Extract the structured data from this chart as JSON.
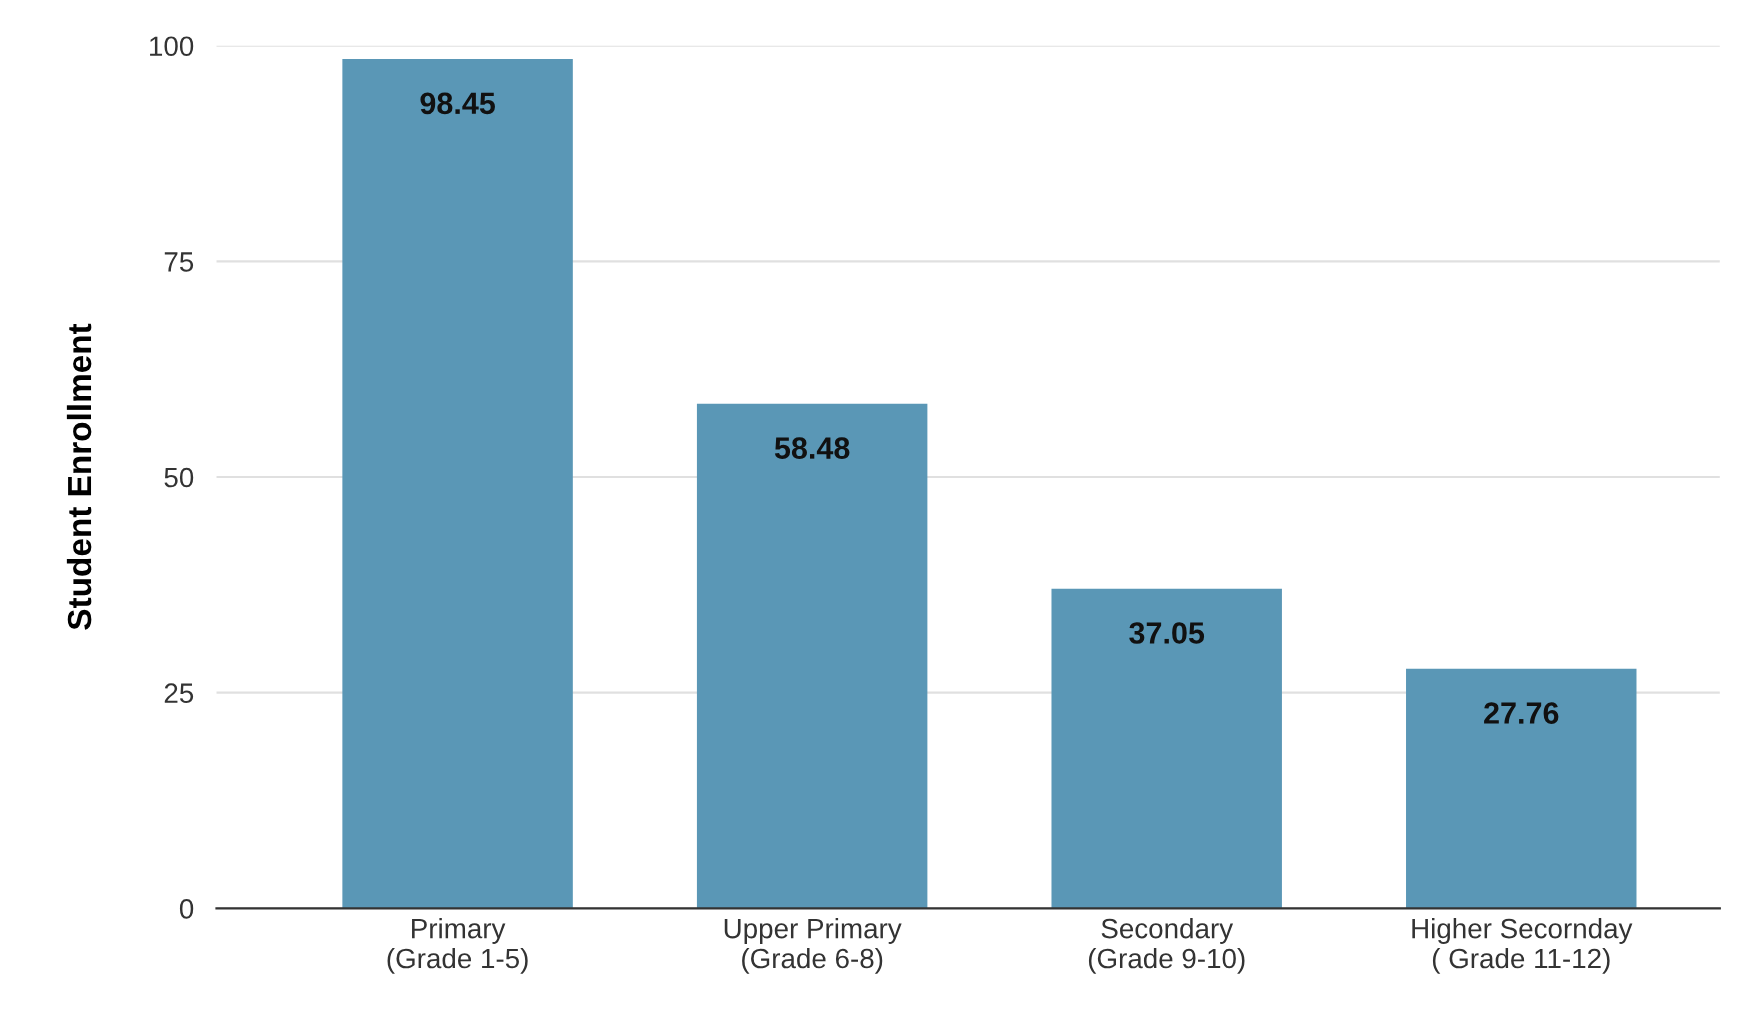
{
  "chart_data": {
    "type": "bar",
    "ylabel": "Student Enrollment",
    "categories": [
      "Primary\n(Grade 1-5)",
      "Upper Primary\n(Grade 6-8)",
      "Secondary\n(Grade 9-10)",
      "Higher Secornday\n( Grade 11-12)"
    ],
    "values": [
      98.45,
      58.48,
      37.05,
      27.76
    ],
    "color": "#5a97b6",
    "ylim": [
      0,
      100
    ],
    "yticks": [
      0,
      25,
      50,
      75,
      100
    ],
    "grid": "y",
    "data_labels": true
  }
}
